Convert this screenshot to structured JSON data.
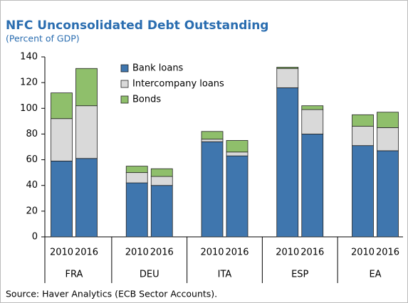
{
  "chart_data": {
    "type": "stacked_bar",
    "title": "NFC Unconsolidated Debt Outstanding",
    "subtitle": "(Percent of GDP)",
    "categories": [
      "2010",
      "2016",
      "2010",
      "2016",
      "2010",
      "2016",
      "2010",
      "2016",
      "2010",
      "2016"
    ],
    "groups": [
      "FRA",
      "DEU",
      "ITA",
      "ESP",
      "EA"
    ],
    "series": [
      {
        "name": "Bank loans",
        "color": "#3f76ae",
        "values": [
          59,
          61,
          42,
          40,
          74,
          63,
          116,
          80,
          71,
          67
        ]
      },
      {
        "name": "Intercompany loans",
        "color": "#d9d9d9",
        "values": [
          33,
          41,
          8,
          7,
          2,
          3,
          15,
          19,
          15,
          18
        ]
      },
      {
        "name": "Bonds",
        "color": "#8fbf6b",
        "values": [
          20,
          29,
          5,
          6,
          6,
          9,
          1,
          3,
          9,
          12
        ]
      }
    ],
    "ylim": [
      0,
      140
    ],
    "yticks": [
      0,
      20,
      40,
      60,
      80,
      100,
      120,
      140
    ],
    "legend": "upper-left",
    "source": "Source: Haver Analytics (ECB Sector Accounts)."
  }
}
